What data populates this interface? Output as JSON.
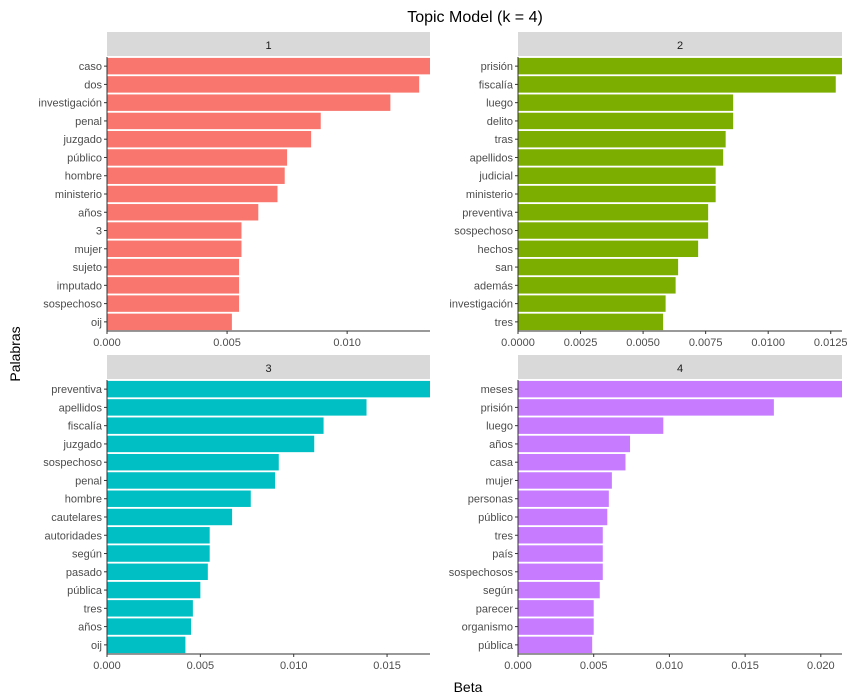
{
  "chart_data": {
    "type": "bar",
    "orientation": "horizontal",
    "title": "Topic Model (k = 4)",
    "xlabel": "Beta",
    "ylabel": "Palabras",
    "grid": false,
    "legend": "none",
    "facets": [
      {
        "strip": "1",
        "color": "#F8766D",
        "xlim": [
          0,
          0.01345
        ],
        "ticks": [
          0,
          0.005,
          0.01
        ],
        "tick_labels": [
          "0.000",
          "0.005",
          "0.010"
        ],
        "categories": [
          "caso",
          "dos",
          "investigación",
          "penal",
          "juzgado",
          "público",
          "hombre",
          "ministerio",
          "años",
          "3",
          "mujer",
          "sujeto",
          "imputado",
          "sospechoso",
          "oij"
        ],
        "values": [
          0.01345,
          0.013,
          0.0118,
          0.0089,
          0.0085,
          0.0075,
          0.0074,
          0.0071,
          0.0063,
          0.0056,
          0.0056,
          0.0055,
          0.0055,
          0.0055,
          0.0052
        ]
      },
      {
        "strip": "2",
        "color": "#7CAE00",
        "xlim": [
          0,
          0.01295
        ],
        "ticks": [
          0,
          0.0025,
          0.005,
          0.0075,
          0.01,
          0.0125
        ],
        "tick_labels": [
          "0.0000",
          "0.0025",
          "0.0050",
          "0.0075",
          "0.0100",
          "0.0125"
        ],
        "categories": [
          "prisión",
          "fiscalía",
          "luego",
          "delito",
          "tras",
          "apellidos",
          "judicial",
          "ministerio",
          "preventiva",
          "sospechoso",
          "hechos",
          "san",
          "además",
          "investigación",
          "tres"
        ],
        "values": [
          0.01295,
          0.0127,
          0.0086,
          0.0086,
          0.0083,
          0.0082,
          0.0079,
          0.0079,
          0.0076,
          0.0076,
          0.0072,
          0.0064,
          0.0063,
          0.0059,
          0.0058
        ]
      },
      {
        "strip": "3",
        "color": "#00BFC4",
        "xlim": [
          0,
          0.0173
        ],
        "ticks": [
          0,
          0.005,
          0.01,
          0.015
        ],
        "tick_labels": [
          "0.000",
          "0.005",
          "0.010",
          "0.015"
        ],
        "categories": [
          "preventiva",
          "apellidos",
          "fiscalía",
          "juzgado",
          "sospechoso",
          "penal",
          "hombre",
          "cautelares",
          "autoridades",
          "según",
          "pasado",
          "pública",
          "tres",
          "años",
          "oij"
        ],
        "values": [
          0.0173,
          0.0139,
          0.0116,
          0.0111,
          0.0092,
          0.009,
          0.0077,
          0.0067,
          0.0055,
          0.0055,
          0.0054,
          0.005,
          0.0046,
          0.0045,
          0.0042
        ]
      },
      {
        "strip": "4",
        "color": "#C77CFF",
        "xlim": [
          0,
          0.0214
        ],
        "ticks": [
          0,
          0.005,
          0.01,
          0.015,
          0.02
        ],
        "tick_labels": [
          "0.000",
          "0.005",
          "0.010",
          "0.015",
          "0.020"
        ],
        "categories": [
          "meses",
          "prisión",
          "luego",
          "años",
          "casa",
          "mujer",
          "personas",
          "público",
          "tres",
          "país",
          "sospechosos",
          "según",
          "parecer",
          "organismo",
          "pública"
        ],
        "values": [
          0.0214,
          0.0169,
          0.0096,
          0.0074,
          0.0071,
          0.0062,
          0.006,
          0.0059,
          0.0056,
          0.0056,
          0.0056,
          0.0054,
          0.005,
          0.005,
          0.0049
        ]
      }
    ]
  }
}
